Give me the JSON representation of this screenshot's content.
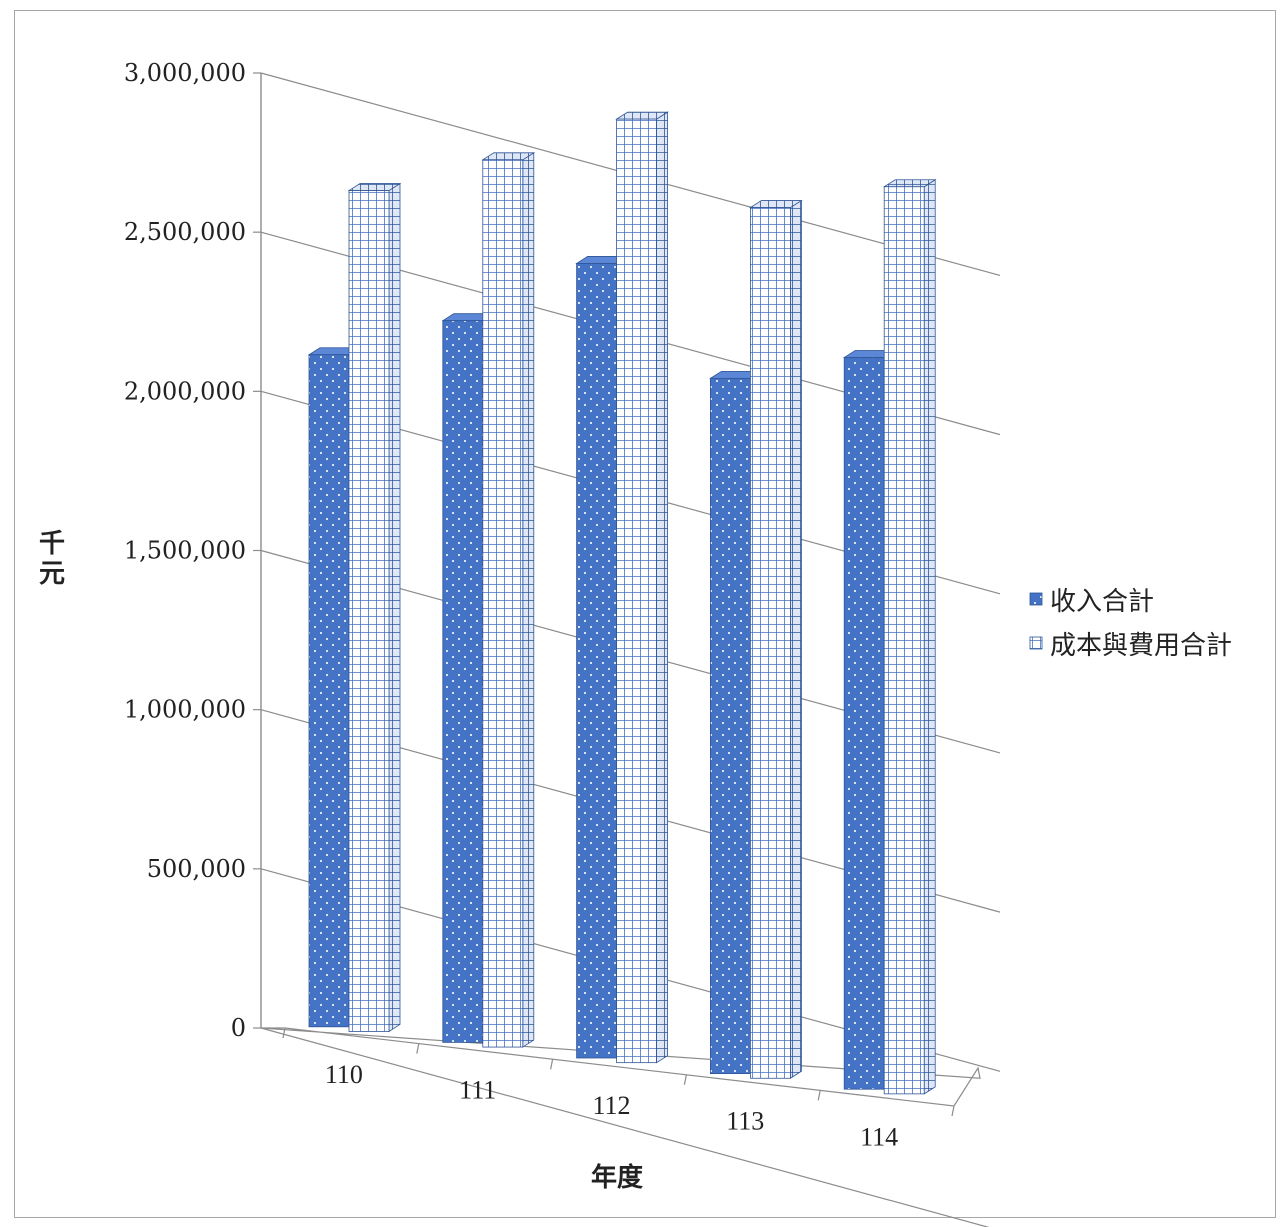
{
  "chart_data": {
    "type": "bar",
    "title": "",
    "xlabel": "年度",
    "ylabel": "千元",
    "categories": [
      "110",
      "111",
      "112",
      "113",
      "114"
    ],
    "series": [
      {
        "name": "收入合計",
        "values": [
          2030000,
          2180000,
          2400000,
          2100000,
          2210000
        ],
        "color": "#4472c4",
        "pattern": "dots"
      },
      {
        "name": "成本與費用合計",
        "values": [
          2540000,
          2680000,
          2850000,
          2630000,
          2740000
        ],
        "color": "#4472c4",
        "pattern": "grid"
      }
    ],
    "ylim": [
      0,
      3000000
    ],
    "yticks": [
      "0",
      "500,000",
      "1,000,000",
      "1,500,000",
      "2,000,000",
      "2,500,000",
      "3,000,000"
    ],
    "grid": true,
    "legend_position": "right",
    "style": "3d-clustered-column"
  }
}
